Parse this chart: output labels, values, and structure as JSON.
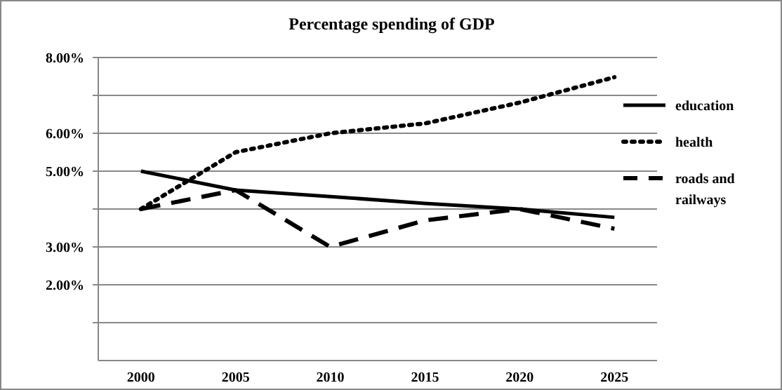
{
  "chart_data": {
    "type": "line",
    "title": "Percentage spending of GDP",
    "categories": [
      "2000",
      "2005",
      "2010",
      "2015",
      "2020",
      "2025"
    ],
    "series": [
      {
        "name": "education",
        "color": "#000000",
        "line_style": "solid",
        "values": [
          5.0,
          4.5,
          4.33,
          4.15,
          4.0,
          3.78
        ]
      },
      {
        "name": "health",
        "color": "#000000",
        "line_style": "dotted",
        "values": [
          4.0,
          5.5,
          6.0,
          6.26,
          6.81,
          7.48
        ]
      },
      {
        "name": "roads and railways",
        "color": "#000000",
        "line_style": "dashed",
        "values": [
          4.0,
          4.5,
          3.0,
          3.7,
          4.0,
          3.48
        ]
      }
    ],
    "ylim": [
      0,
      8
    ],
    "yticks": [
      {
        "value": 1,
        "label": null
      },
      {
        "value": 2,
        "label": "2.00%"
      },
      {
        "value": 3,
        "label": "3.00%"
      },
      {
        "value": 4,
        "label": null
      },
      {
        "value": 5,
        "label": "5.00%"
      },
      {
        "value": 6,
        "label": "6.00%"
      },
      {
        "value": 7,
        "label": null
      },
      {
        "value": 8,
        "label": "8.00%"
      }
    ],
    "grid": "y",
    "legend": "right",
    "marker": "none"
  }
}
